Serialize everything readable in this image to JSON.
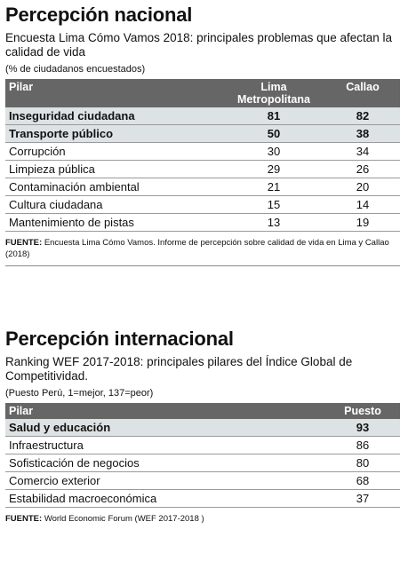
{
  "nacional": {
    "title": "Percepción nacional",
    "subtitle": "Encuesta Lima Cómo Vamos 2018: principales problemas que afectan la calidad de vida",
    "note": "(% de ciudadanos encuestados)",
    "headers": {
      "pilar": "Pilar",
      "lima": "Lima Metropolitana",
      "callao": "Callao"
    },
    "rows": [
      {
        "pilar": "Inseguridad ciudadana",
        "lima": "81",
        "callao": "82"
      },
      {
        "pilar": "Transporte público",
        "lima": "50",
        "callao": "38"
      },
      {
        "pilar": "Corrupción",
        "lima": "30",
        "callao": "34"
      },
      {
        "pilar": "Limpieza pública",
        "lima": "29",
        "callao": "26"
      },
      {
        "pilar": "Contaminación ambiental",
        "lima": "21",
        "callao": "20"
      },
      {
        "pilar": "Cultura ciudadana",
        "lima": "15",
        "callao": "14"
      },
      {
        "pilar": "Mantenimiento de pistas",
        "lima": "13",
        "callao": "19"
      }
    ],
    "source_label": "FUENTE:",
    "source_text": "Encuesta Lima Cómo Vamos. Informe de percepción sobre calidad de vida en Lima y Callao (2018)"
  },
  "internacional": {
    "title": "Percepción internacional",
    "subtitle": "Ranking WEF 2017-2018: principales pilares del Índice Global de Competitividad.",
    "note": "(Puesto Perú, 1=mejor, 137=peor)",
    "headers": {
      "pilar": "Pilar",
      "puesto": "Puesto"
    },
    "rows": [
      {
        "pilar": "Salud y educación",
        "puesto": "93"
      },
      {
        "pilar": "Infraestructura",
        "puesto": "86"
      },
      {
        "pilar": "Sofisticación de negocios",
        "puesto": "80"
      },
      {
        "pilar": "Comercio exterior",
        "puesto": "68"
      },
      {
        "pilar": "Estabilidad macroeconómica",
        "puesto": "37"
      }
    ],
    "source_label": "FUENTE:",
    "source_text": "World Economic Forum (WEF 2017-2018 )"
  },
  "colors": {
    "header_bg": "#666666",
    "highlight_bg": "#dde2e5"
  }
}
